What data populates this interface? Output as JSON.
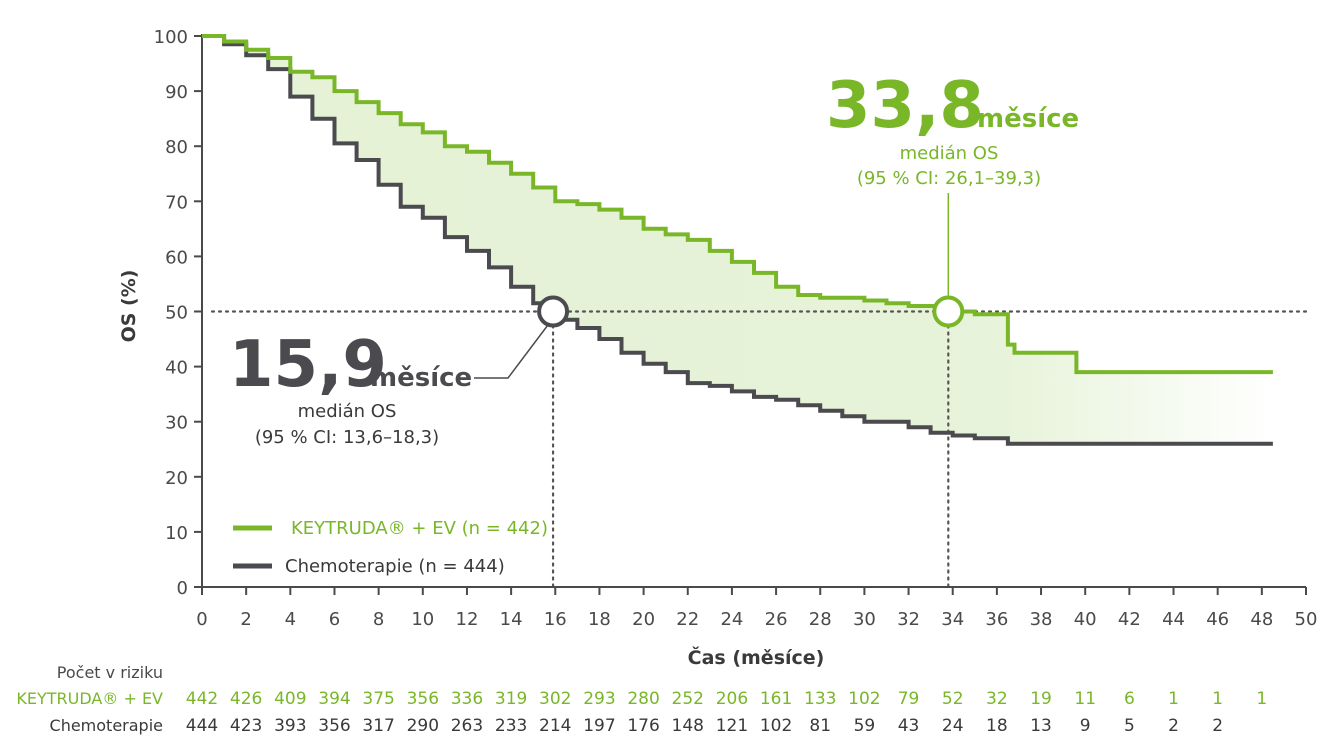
{
  "colors": {
    "keytruda": "#79b729",
    "chemo": "#4a4a4f",
    "fill": "#e3f1d3",
    "text": "#3a3a3a",
    "axis": "#4a4a4a"
  },
  "chart_data": {
    "type": "line",
    "subtype": "kaplan-meier",
    "xlabel": "Čas (měsíce)",
    "ylabel": "OS (%)",
    "xlim": [
      0,
      50
    ],
    "ylim": [
      0,
      100
    ],
    "x_ticks": [
      "0",
      "2",
      "4",
      "6",
      "8",
      "10",
      "12",
      "14",
      "16",
      "18",
      "20",
      "22",
      "24",
      "26",
      "28",
      "30",
      "32",
      "34",
      "36",
      "38",
      "40",
      "42",
      "44",
      "46",
      "48",
      "50"
    ],
    "y_ticks": [
      "0",
      "10",
      "20",
      "30",
      "40",
      "50",
      "60",
      "70",
      "80",
      "90",
      "100"
    ],
    "legend": [
      {
        "label": "KEYTRUDA® + EV (n = 442)",
        "series": "keytruda"
      },
      {
        "label": "Chemoterapie (n = 444)",
        "series": "chemo"
      }
    ],
    "series": [
      {
        "name": "KEYTRUDA® + EV (n = 442)",
        "key": "keytruda",
        "points": [
          [
            0,
            100
          ],
          [
            1,
            99
          ],
          [
            2,
            97.5
          ],
          [
            3,
            96
          ],
          [
            4,
            93.5
          ],
          [
            5,
            92.5
          ],
          [
            6,
            90
          ],
          [
            7,
            88
          ],
          [
            8,
            86
          ],
          [
            9,
            84
          ],
          [
            10,
            82.5
          ],
          [
            11,
            80
          ],
          [
            12,
            79
          ],
          [
            13,
            77
          ],
          [
            14,
            75
          ],
          [
            15,
            72.5
          ],
          [
            16,
            70
          ],
          [
            17,
            69.5
          ],
          [
            18,
            68.5
          ],
          [
            19,
            67
          ],
          [
            20,
            65
          ],
          [
            21,
            64
          ],
          [
            22,
            63
          ],
          [
            23,
            61
          ],
          [
            24,
            59
          ],
          [
            25,
            57
          ],
          [
            26,
            54.5
          ],
          [
            27,
            53
          ],
          [
            28,
            52.5
          ],
          [
            29,
            52.5
          ],
          [
            30,
            52
          ],
          [
            31,
            51.5
          ],
          [
            32,
            51
          ],
          [
            33,
            51
          ],
          [
            34,
            50
          ],
          [
            35,
            49.5
          ],
          [
            36,
            49.5
          ],
          [
            36.5,
            44
          ],
          [
            36.8,
            42.5
          ],
          [
            38,
            42.5
          ],
          [
            39.6,
            42.5
          ],
          [
            39.6,
            39
          ],
          [
            48.5,
            39
          ]
        ]
      },
      {
        "name": "Chemoterapie (n = 444)",
        "key": "chemo",
        "points": [
          [
            0,
            100
          ],
          [
            1,
            98.5
          ],
          [
            2,
            96.5
          ],
          [
            3,
            94
          ],
          [
            4,
            89
          ],
          [
            5,
            85
          ],
          [
            6,
            80.5
          ],
          [
            7,
            77.5
          ],
          [
            8,
            73
          ],
          [
            9,
            69
          ],
          [
            10,
            67
          ],
          [
            11,
            63.5
          ],
          [
            12,
            61
          ],
          [
            13,
            58
          ],
          [
            14,
            54.5
          ],
          [
            15,
            51.5
          ],
          [
            16,
            48.5
          ],
          [
            17,
            47
          ],
          [
            18,
            45
          ],
          [
            19,
            42.5
          ],
          [
            20,
            40.5
          ],
          [
            21,
            39
          ],
          [
            22,
            37
          ],
          [
            23,
            36.5
          ],
          [
            24,
            35.5
          ],
          [
            25,
            34.5
          ],
          [
            26,
            34
          ],
          [
            27,
            33
          ],
          [
            28,
            32
          ],
          [
            29,
            31
          ],
          [
            30,
            30
          ],
          [
            31,
            30
          ],
          [
            32,
            29
          ],
          [
            33,
            28
          ],
          [
            34,
            27.5
          ],
          [
            35,
            27
          ],
          [
            36,
            27
          ],
          [
            36.5,
            26
          ],
          [
            48.5,
            26
          ]
        ]
      }
    ],
    "medians": [
      {
        "series": "keytruda",
        "x": 33.8,
        "y": 50,
        "value": "33,8",
        "unit": "měsíce",
        "label": "medián OS",
        "ci": "(95 % CI: 26,1–39,3)"
      },
      {
        "series": "chemo",
        "x": 15.9,
        "y": 50,
        "value": "15,9",
        "unit": "měsíce",
        "label": "medián OS",
        "ci": "(95 % CI: 13,6–18,3)"
      }
    ],
    "at_risk": {
      "title": "Počet v riziku",
      "rows": [
        {
          "label": "KEYTRUDA® + EV",
          "series": "keytruda",
          "values": [
            "442",
            "426",
            "409",
            "394",
            "375",
            "356",
            "336",
            "319",
            "302",
            "293",
            "280",
            "252",
            "206",
            "161",
            "133",
            "102",
            "79",
            "52",
            "32",
            "19",
            "11",
            "6",
            "1",
            "1",
            "1"
          ]
        },
        {
          "label": "Chemoterapie",
          "series": "chemo",
          "values": [
            "444",
            "423",
            "393",
            "356",
            "317",
            "290",
            "263",
            "233",
            "214",
            "197",
            "176",
            "148",
            "121",
            "102",
            "81",
            "59",
            "43",
            "24",
            "18",
            "13",
            "9",
            "5",
            "2",
            "2"
          ]
        }
      ]
    }
  }
}
